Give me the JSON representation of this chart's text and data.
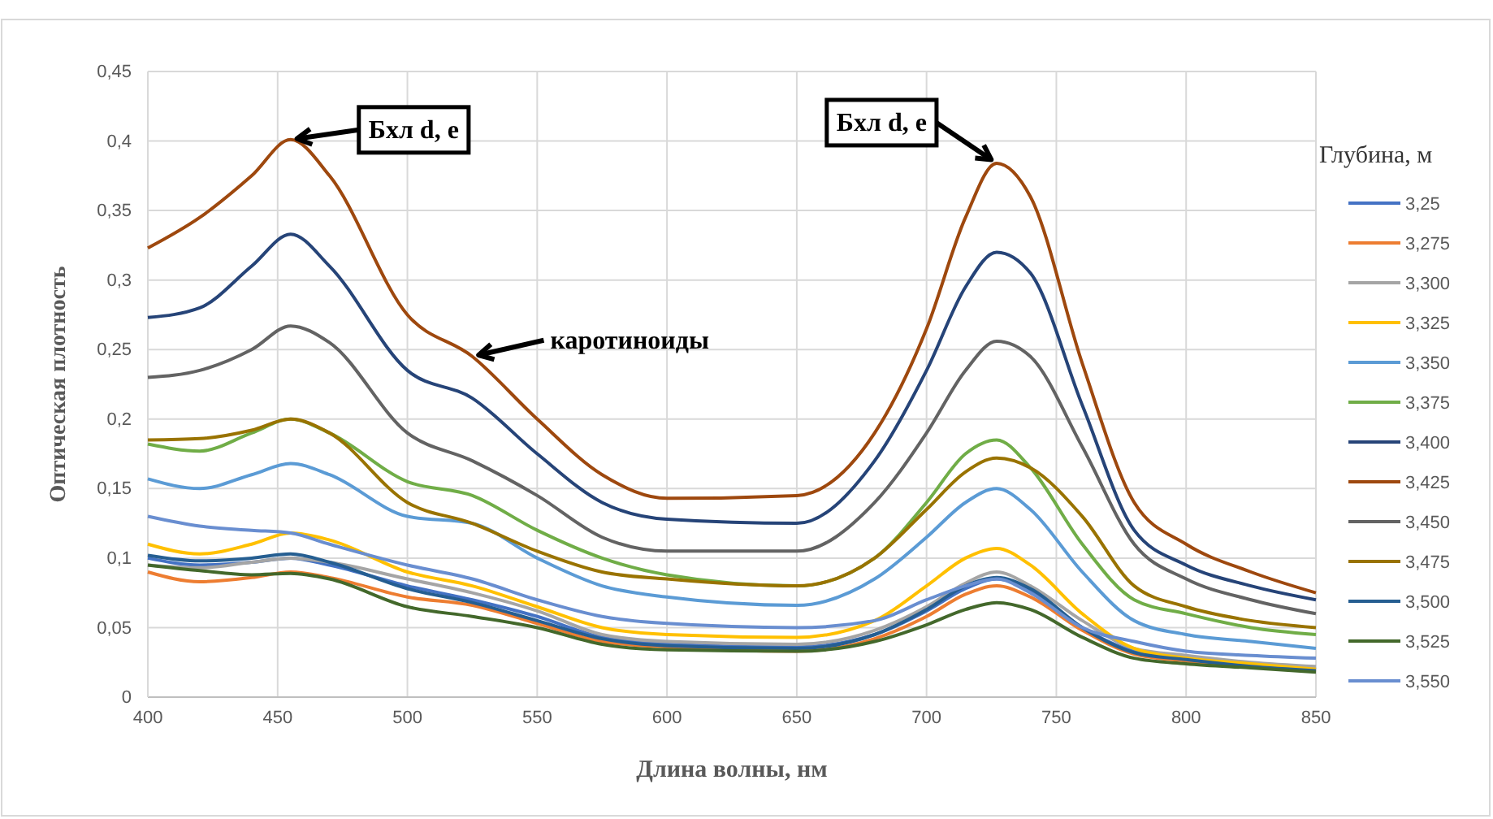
{
  "chart_data": {
    "type": "line",
    "xlabel": "Длина волны, нм",
    "ylabel": "Оптическая плотность",
    "legend_title": "Глубина, м",
    "legend": "right",
    "grid": true,
    "xlim": [
      400,
      850
    ],
    "xticks": [
      400,
      450,
      500,
      550,
      600,
      650,
      700,
      750,
      800,
      850
    ],
    "ylim": [
      0,
      0.45
    ],
    "yticks": [
      0,
      {
        "value": 0.05,
        "label": "0,05"
      },
      {
        "value": 0.1,
        "label": "0,1"
      },
      {
        "value": 0.15,
        "label": "0,15"
      },
      {
        "value": 0.2,
        "label": "0,2"
      },
      {
        "value": 0.25,
        "label": "0,25"
      },
      {
        "value": 0.3,
        "label": "0,3"
      },
      {
        "value": 0.35,
        "label": "0,35"
      },
      {
        "value": 0.4,
        "label": "0,4"
      },
      {
        "value": 0.45,
        "label": "0,45"
      }
    ],
    "x": [
      400,
      420,
      440,
      455,
      470,
      500,
      525,
      550,
      575,
      600,
      650,
      680,
      700,
      715,
      727,
      740,
      760,
      780,
      800,
      825,
      850
    ],
    "series": [
      {
        "name": "3,25",
        "color": "#4472c4",
        "values": [
          0.1,
          0.095,
          0.097,
          0.1,
          0.095,
          0.08,
          0.07,
          0.058,
          0.043,
          0.038,
          0.036,
          0.045,
          0.062,
          0.078,
          0.085,
          0.077,
          0.05,
          0.033,
          0.028,
          0.024,
          0.02
        ]
      },
      {
        "name": "3,275",
        "color": "#ed7d31",
        "values": [
          0.09,
          0.083,
          0.086,
          0.09,
          0.086,
          0.072,
          0.066,
          0.053,
          0.04,
          0.036,
          0.033,
          0.042,
          0.058,
          0.074,
          0.08,
          0.072,
          0.048,
          0.031,
          0.026,
          0.022,
          0.02
        ]
      },
      {
        "name": "3,300",
        "color": "#a5a5a5",
        "values": [
          0.095,
          0.093,
          0.097,
          0.1,
          0.097,
          0.085,
          0.075,
          0.062,
          0.045,
          0.04,
          0.038,
          0.048,
          0.065,
          0.082,
          0.09,
          0.08,
          0.055,
          0.035,
          0.03,
          0.025,
          0.022
        ]
      },
      {
        "name": "3,325",
        "color": "#ffc000",
        "values": [
          0.11,
          0.103,
          0.11,
          0.118,
          0.113,
          0.09,
          0.08,
          0.065,
          0.05,
          0.045,
          0.043,
          0.055,
          0.08,
          0.1,
          0.107,
          0.095,
          0.06,
          0.035,
          0.028,
          0.024,
          0.02
        ]
      },
      {
        "name": "3,350",
        "color": "#5b9bd5",
        "values": [
          0.157,
          0.15,
          0.16,
          0.168,
          0.16,
          0.13,
          0.125,
          0.1,
          0.08,
          0.072,
          0.066,
          0.085,
          0.115,
          0.14,
          0.15,
          0.135,
          0.09,
          0.055,
          0.045,
          0.04,
          0.035
        ]
      },
      {
        "name": "3,375",
        "color": "#70ad47",
        "values": [
          0.182,
          0.177,
          0.19,
          0.2,
          0.19,
          0.155,
          0.145,
          0.12,
          0.1,
          0.088,
          0.08,
          0.1,
          0.14,
          0.175,
          0.185,
          0.165,
          0.11,
          0.07,
          0.06,
          0.05,
          0.045
        ]
      },
      {
        "name": "3,400",
        "color": "#264478",
        "values": [
          0.273,
          0.28,
          0.31,
          0.333,
          0.31,
          0.235,
          0.215,
          0.175,
          0.14,
          0.128,
          0.125,
          0.17,
          0.235,
          0.295,
          0.32,
          0.305,
          0.21,
          0.12,
          0.095,
          0.08,
          0.07
        ]
      },
      {
        "name": "3,425",
        "color": "#9e480e",
        "values": [
          0.323,
          0.345,
          0.375,
          0.401,
          0.375,
          0.275,
          0.245,
          0.2,
          0.16,
          0.143,
          0.145,
          0.19,
          0.265,
          0.345,
          0.384,
          0.36,
          0.24,
          0.14,
          0.11,
          0.09,
          0.075
        ]
      },
      {
        "name": "3,450",
        "color": "#636363",
        "values": [
          0.23,
          0.235,
          0.25,
          0.267,
          0.255,
          0.19,
          0.17,
          0.145,
          0.115,
          0.105,
          0.105,
          0.14,
          0.19,
          0.235,
          0.256,
          0.245,
          0.18,
          0.11,
          0.085,
          0.07,
          0.06
        ]
      },
      {
        "name": "3,475",
        "color": "#997300",
        "values": [
          0.185,
          0.186,
          0.192,
          0.2,
          0.19,
          0.14,
          0.125,
          0.105,
          0.09,
          0.085,
          0.08,
          0.1,
          0.135,
          0.162,
          0.172,
          0.165,
          0.13,
          0.08,
          0.065,
          0.055,
          0.05
        ]
      },
      {
        "name": "3,500",
        "color": "#255e91",
        "values": [
          0.102,
          0.098,
          0.1,
          0.103,
          0.097,
          0.078,
          0.068,
          0.055,
          0.042,
          0.037,
          0.035,
          0.045,
          0.063,
          0.08,
          0.086,
          0.078,
          0.05,
          0.032,
          0.027,
          0.022,
          0.019
        ]
      },
      {
        "name": "3,525",
        "color": "#43682b",
        "values": [
          0.095,
          0.091,
          0.088,
          0.089,
          0.085,
          0.065,
          0.058,
          0.05,
          0.038,
          0.034,
          0.033,
          0.04,
          0.052,
          0.063,
          0.068,
          0.063,
          0.043,
          0.028,
          0.024,
          0.021,
          0.018
        ]
      },
      {
        "name": "3,550",
        "color": "#698ed0",
        "values": [
          0.13,
          0.123,
          0.12,
          0.118,
          0.11,
          0.095,
          0.085,
          0.07,
          0.058,
          0.053,
          0.05,
          0.055,
          0.07,
          0.08,
          0.085,
          0.075,
          0.05,
          0.04,
          0.033,
          0.03,
          0.028
        ]
      }
    ],
    "annotations": [
      {
        "text": "Бхл d, e",
        "x": 455,
        "y": 0.401
      },
      {
        "text": "Бхл d, e",
        "x": 727,
        "y": 0.384
      },
      {
        "text": "каротиноиды",
        "x": 525,
        "y": 0.245
      }
    ]
  }
}
